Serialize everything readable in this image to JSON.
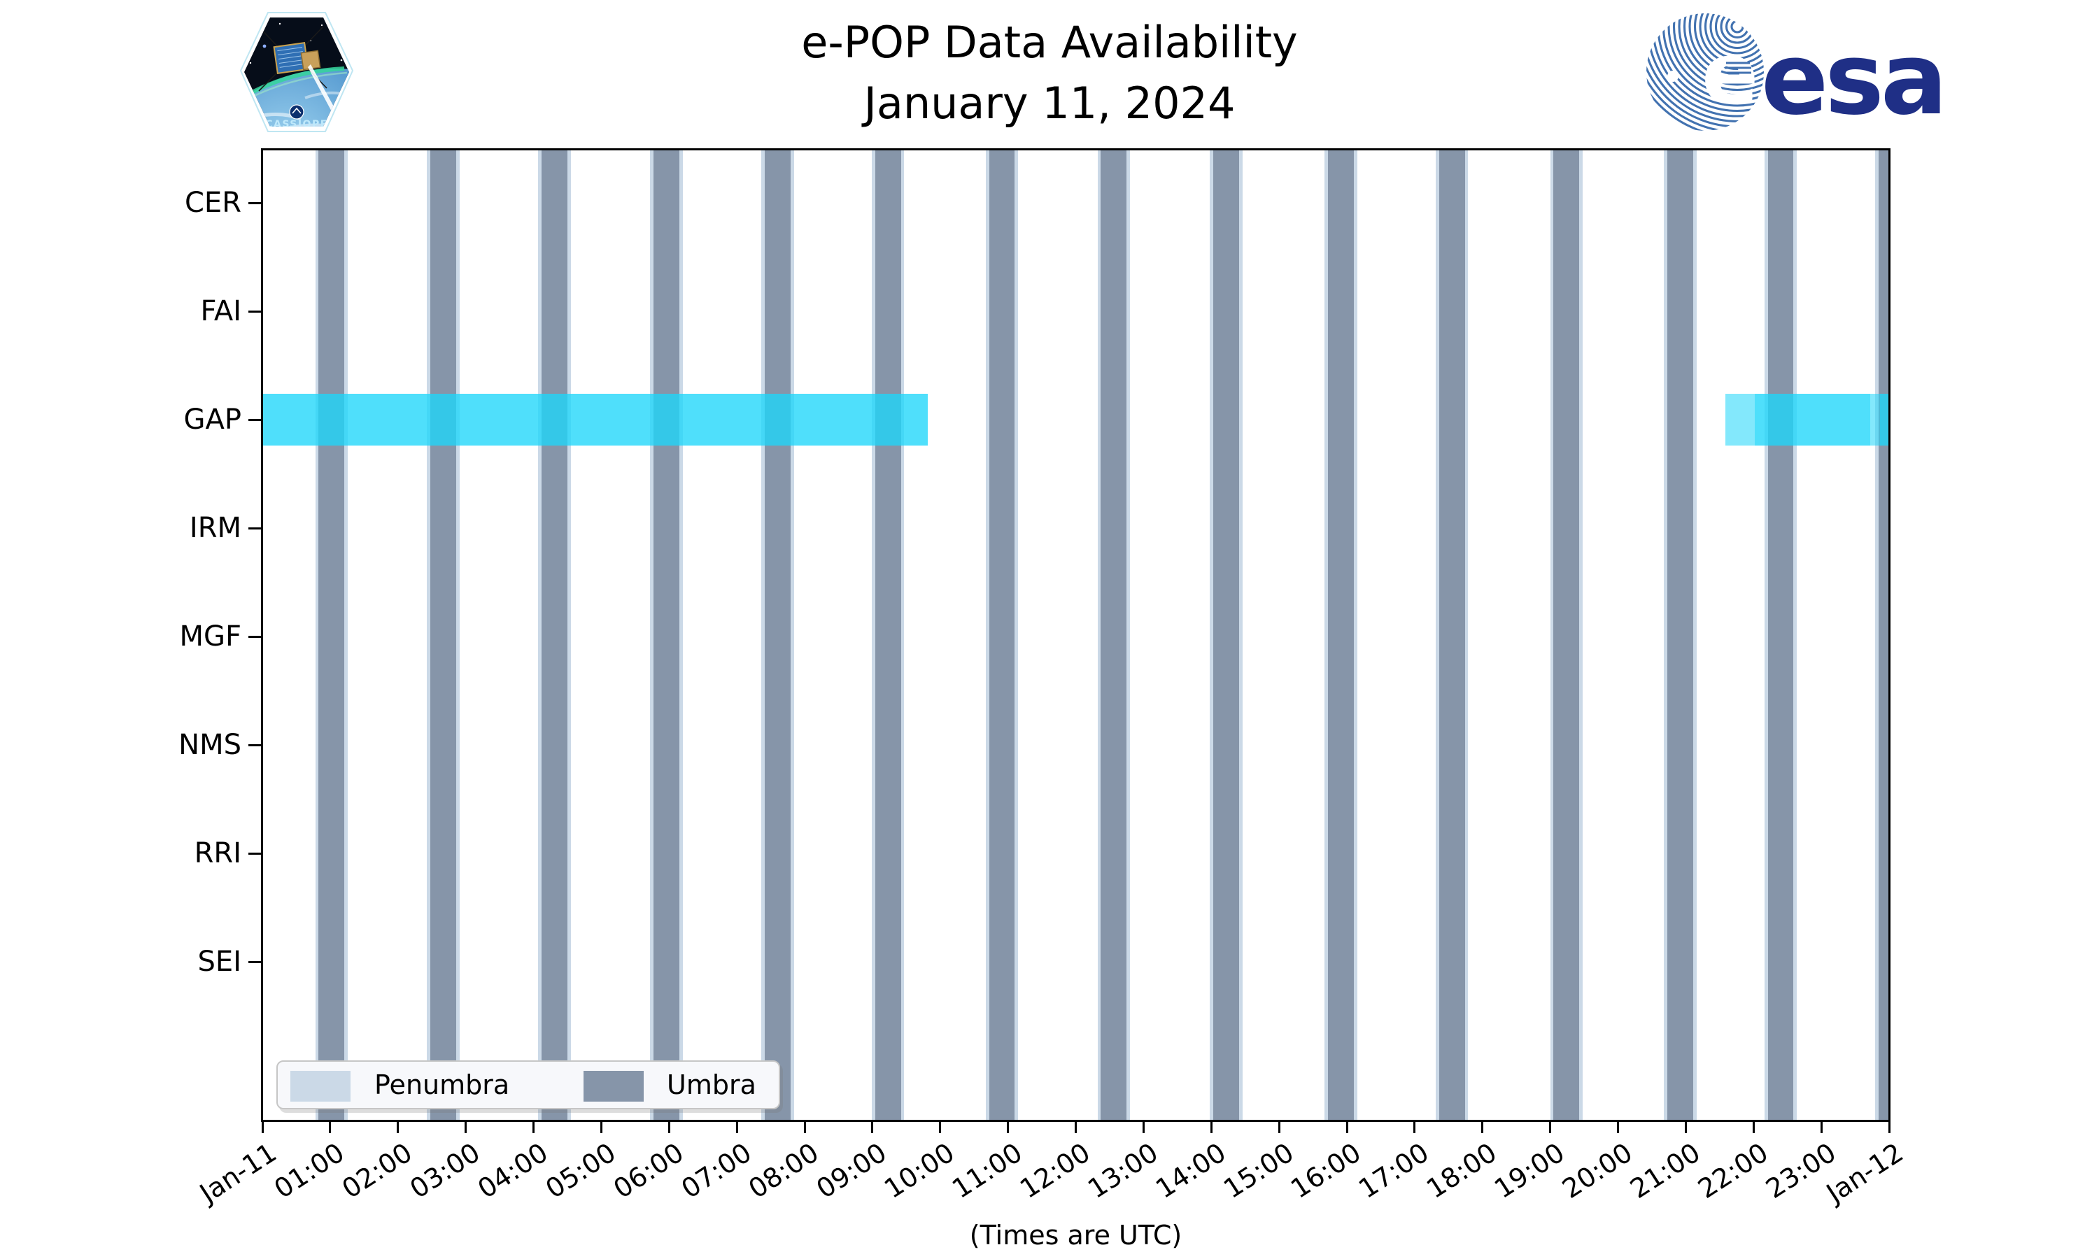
{
  "header": {
    "title_line1": "e-POP Data Availability",
    "title_line2": "January 11, 2024",
    "cassiope_patch_label": "CASSIOPE",
    "esa_wordmark": "esa"
  },
  "chart_data": {
    "type": "timeline-gantt",
    "title": "e-POP Data Availability",
    "subtitle": "January 11, 2024",
    "xlabel": "(Times are UTC)",
    "x_range_hours": [
      0,
      24
    ],
    "x_tick_labels": [
      "Jan-11",
      "01:00",
      "02:00",
      "03:00",
      "04:00",
      "05:00",
      "06:00",
      "07:00",
      "08:00",
      "09:00",
      "10:00",
      "11:00",
      "12:00",
      "13:00",
      "14:00",
      "15:00",
      "16:00",
      "17:00",
      "18:00",
      "19:00",
      "20:00",
      "21:00",
      "22:00",
      "23:00",
      "Jan-12"
    ],
    "instruments": [
      "CER",
      "FAI",
      "GAP",
      "IRM",
      "MGF",
      "NMS",
      "RRI",
      "SEI"
    ],
    "availability_note": "Only GAP has data availability bands on this day",
    "gap_availability_segments": [
      {
        "start_hour": 0.0,
        "end_hour": 9.82,
        "intensity": "full"
      },
      {
        "start_hour": 21.58,
        "end_hour": 22.02,
        "intensity": "light"
      },
      {
        "start_hour": 22.02,
        "end_hour": 23.72,
        "intensity": "full"
      },
      {
        "start_hour": 23.72,
        "end_hour": 23.87,
        "intensity": "light"
      },
      {
        "start_hour": 23.87,
        "end_hour": 24.0,
        "intensity": "full"
      }
    ],
    "umbra_intervals_hours": [
      [
        0.83,
        1.21
      ],
      [
        2.48,
        2.86
      ],
      [
        4.12,
        4.5
      ],
      [
        5.77,
        6.15
      ],
      [
        7.41,
        7.79
      ],
      [
        9.04,
        9.42
      ],
      [
        10.72,
        11.1
      ],
      [
        12.37,
        12.75
      ],
      [
        14.03,
        14.41
      ],
      [
        15.72,
        16.1
      ],
      [
        17.36,
        17.74
      ],
      [
        19.05,
        19.43
      ],
      [
        20.73,
        21.11
      ],
      [
        22.21,
        22.59
      ],
      [
        23.84,
        24.22
      ]
    ],
    "penumbra_margin_hours": 0.05,
    "legend": {
      "items": [
        {
          "label": "Penumbra",
          "color": "#cbd9e7"
        },
        {
          "label": "Umbra",
          "color": "#8695a9"
        }
      ]
    },
    "colors": {
      "gap_band_rgb": "30,214,250",
      "gap_alpha_full": 0.78,
      "gap_alpha_light": 0.55,
      "umbra": "#8695a9",
      "penumbra": "#cbd9e7",
      "axis": "#000000",
      "esa_blue": "#1f2f86",
      "esa_swirl_blue": "#4272b0"
    }
  }
}
